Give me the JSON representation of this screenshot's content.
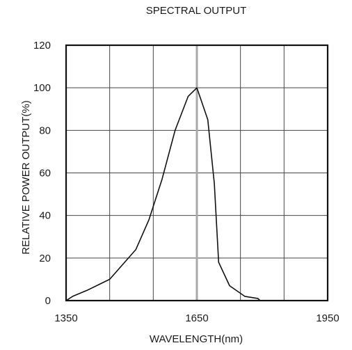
{
  "chart_data": {
    "type": "line",
    "title": "SPECTRAL OUTPUT",
    "xlabel": "WAVELENGTH(nm)",
    "ylabel": "RELATIVE POWER OUTPUT(%)",
    "xlim": [
      1350,
      1950
    ],
    "ylim": [
      0,
      120
    ],
    "x_tick_labels": [
      "1350",
      "1650",
      "1950"
    ],
    "y_tick_labels": [
      "0",
      "20",
      "40",
      "60",
      "80",
      "100",
      "120"
    ],
    "grid": true,
    "highlight_x": 1650,
    "series": [
      {
        "x": [
          1350,
          1365,
          1400,
          1430,
          1450,
          1480,
          1510,
          1540,
          1570,
          1600,
          1630,
          1650,
          1660,
          1675,
          1690,
          1700,
          1725,
          1760,
          1790,
          1795
        ],
        "y": [
          0,
          2,
          5,
          8,
          10,
          17,
          24,
          38,
          57,
          80,
          96,
          100,
          94,
          85,
          55,
          18,
          7,
          2,
          1,
          0
        ]
      }
    ],
    "colors": {
      "line": "#111111",
      "grid": "#444444",
      "highlight": "#a8a8a8"
    }
  }
}
